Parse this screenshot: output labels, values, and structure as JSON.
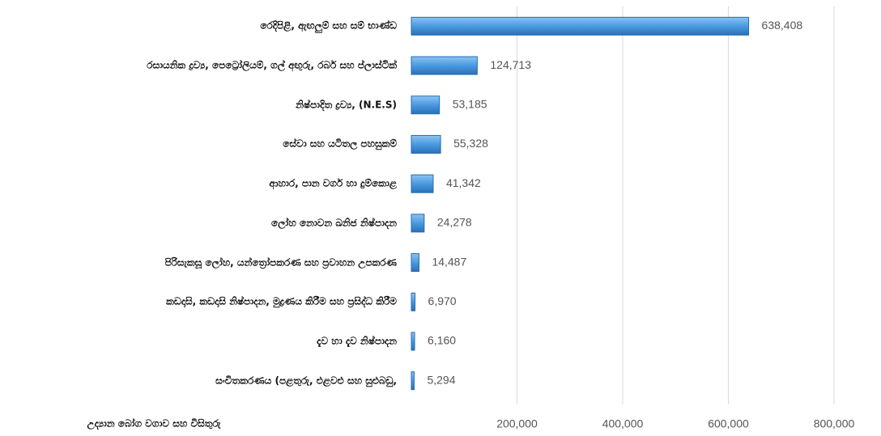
{
  "chart_data": {
    "type": "bar",
    "orientation": "horizontal",
    "categories": [
      "රෙදිපිළි, ඇඟලුම් සහ සම් භාණ්ඩ",
      "රසායනික ද්‍රව්‍ය, පෙට්‍රෝලියම්, ගල් අඟුරු, රබර් සහ ප්ලාස්ටික්",
      "නිෂ්පාදිත ද්‍රව්‍ය, (N.E.S)",
      "සේවා සහ යටිතල පහසුකම්",
      "ආහාර, පාන වර්ග හා දුම්කොළ",
      "ලෝහ නොවන ඛනිජ නිෂ්පාදන",
      "පිරිසැකසූ ලෝහ, යන්ත්‍රෝපකරණ සහ ප්‍රවාහන උපකරණ",
      "කඩදාසි, කඩදාසි නිෂ්පාදන, මුද්‍රණය කිරීම සහ ප්‍රසිද්ධ කිරීම",
      "දැව හා දැව නිෂ්පාදන",
      "සංචිතකරණය (පළතුරු, එළවළු සහ සුළුබඩු,"
    ],
    "values": [
      638408,
      124713,
      53185,
      55328,
      41342,
      24278,
      14487,
      6970,
      6160,
      5294
    ],
    "value_labels": [
      "638,408",
      "124,713",
      "53,185",
      "55,328",
      "41,342",
      "24,278",
      "14,487",
      "6,970",
      "6,160",
      "5,294"
    ],
    "note": "උද්‍යාන බෝග වගාව සහ විසිතුරු",
    "color": "#4a9ae0",
    "xlim": [
      0,
      800000
    ],
    "xticks": [
      {
        "value": 200000,
        "label": "200,000"
      },
      {
        "value": 400000,
        "label": "400,000"
      },
      {
        "value": 600000,
        "label": "600,000"
      },
      {
        "value": 800000,
        "label": "800,000"
      }
    ],
    "grid": true
  }
}
